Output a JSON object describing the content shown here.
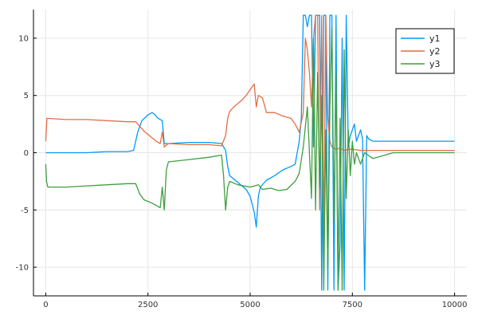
{
  "chart_data": {
    "type": "line",
    "title": "",
    "xlabel": "",
    "ylabel": "",
    "xlim": [
      -300,
      10300
    ],
    "ylim": [
      -12.5,
      12.5
    ],
    "x_ticks": [
      0,
      2500,
      5000,
      7500,
      10000
    ],
    "x_tick_labels": [
      "0",
      "2500",
      "5000",
      "7500",
      "10000"
    ],
    "y_ticks": [
      -10,
      -5,
      0,
      5,
      10
    ],
    "y_tick_labels": [
      "-10",
      "-5",
      "0",
      "5",
      "10"
    ],
    "grid": true,
    "legend_position": "top-right",
    "series": [
      {
        "name": "y1",
        "color": "#009AFA",
        "x": [
          0,
          500,
          1000,
          1500,
          2000,
          2150,
          2250,
          2350,
          2500,
          2600,
          2650,
          2750,
          2850,
          2900,
          3000,
          3500,
          4000,
          4300,
          4400,
          4450,
          4500,
          4700,
          4900,
          5000,
          5100,
          5150,
          5200,
          5250,
          5400,
          5600,
          5800,
          6000,
          6100,
          6200,
          6250,
          6300,
          6350,
          6400,
          6450,
          6500,
          6550,
          6600,
          6650,
          6700,
          6750,
          6800,
          6850,
          6900,
          6950,
          7000,
          7050,
          7100,
          7150,
          7200,
          7250,
          7300,
          7350,
          7400,
          7450,
          7500,
          7550,
          7600,
          7650,
          7700,
          7750,
          7800,
          7850,
          7900,
          8000,
          8500,
          9000,
          9500,
          10000
        ],
        "y": [
          0,
          0,
          0,
          0.1,
          0.1,
          0.2,
          1.8,
          2.8,
          3.3,
          3.5,
          3.4,
          3.0,
          2.8,
          0.8,
          0.8,
          0.9,
          0.9,
          0.8,
          0.2,
          -1.2,
          -2.0,
          -2.6,
          -3.2,
          -3.8,
          -5.2,
          -6.5,
          -3.8,
          -3.0,
          -2.4,
          -2.0,
          -1.5,
          -1.2,
          -1.0,
          1.0,
          3.0,
          12,
          12,
          11,
          12,
          12,
          0.5,
          12,
          12,
          12,
          -12,
          12,
          12,
          -12,
          12,
          12,
          -12,
          12,
          -12,
          -8,
          10,
          -12,
          12,
          0.5,
          1.5,
          2.0,
          2.5,
          1.0,
          1.5,
          2.0,
          1.2,
          -12,
          1.5,
          1.2,
          1.0,
          1.0,
          1.0,
          1.0,
          1.0
        ]
      },
      {
        "name": "y2",
        "color": "#E26F46",
        "x": [
          0,
          30,
          500,
          1000,
          1500,
          2000,
          2200,
          2400,
          2600,
          2700,
          2800,
          2850,
          2900,
          3000,
          3500,
          4000,
          4300,
          4400,
          4450,
          4500,
          4600,
          4800,
          4900,
          5000,
          5100,
          5150,
          5200,
          5300,
          5400,
          5600,
          5800,
          6000,
          6100,
          6200,
          6300,
          6350,
          6400,
          6450,
          6500,
          6550,
          6600,
          6650,
          6700,
          6750,
          6800,
          6850,
          6900,
          6950,
          7000,
          7100,
          7200,
          7300,
          7400,
          7500,
          7700,
          8000,
          8500,
          9000,
          9500,
          10000
        ],
        "y": [
          1.0,
          3.0,
          2.9,
          2.9,
          2.8,
          2.7,
          2.7,
          1.9,
          1.3,
          1.0,
          0.8,
          1.8,
          0.5,
          0.8,
          0.7,
          0.7,
          0.6,
          1.5,
          3.0,
          3.6,
          4.0,
          4.6,
          5.0,
          5.5,
          6.0,
          4.0,
          5.0,
          4.8,
          3.5,
          3.5,
          3.2,
          3.0,
          2.5,
          1.8,
          3.5,
          10,
          9,
          7,
          4,
          10,
          12,
          12,
          -5,
          12,
          -7.8,
          12,
          3,
          1,
          0.5,
          0.3,
          0.4,
          0.2,
          0.3,
          0.3,
          0.2,
          0.2,
          0.2,
          0.2,
          0.2,
          0.2
        ]
      },
      {
        "name": "y3",
        "color": "#3E9F3E",
        "x": [
          0,
          20,
          50,
          500,
          1000,
          1500,
          2000,
          2200,
          2300,
          2400,
          2600,
          2700,
          2800,
          2850,
          2900,
          2950,
          3000,
          3500,
          4000,
          4300,
          4350,
          4400,
          4450,
          4500,
          4700,
          5000,
          5200,
          5300,
          5500,
          5700,
          5900,
          6100,
          6200,
          6300,
          6400,
          6500,
          6550,
          6600,
          6650,
          6700,
          6750,
          6800,
          6850,
          6900,
          6950,
          7000,
          7050,
          7100,
          7150,
          7200,
          7250,
          7300,
          7350,
          7400,
          7450,
          7500,
          7550,
          7600,
          7700,
          7800,
          8000,
          8500,
          9000,
          9500,
          10000
        ],
        "y": [
          -1.0,
          -2.5,
          -3.0,
          -3.0,
          -2.9,
          -2.8,
          -2.7,
          -2.7,
          -3.6,
          -4.1,
          -4.4,
          -4.6,
          -4.8,
          -3.0,
          -5.0,
          -1.5,
          -0.8,
          -0.6,
          -0.4,
          -0.2,
          -2.0,
          -5.0,
          -3.0,
          -2.5,
          -2.8,
          -3.0,
          -2.8,
          -3.2,
          -3.1,
          -3.3,
          -3.2,
          -2.5,
          -1.8,
          0.5,
          4.0,
          -4.0,
          10.0,
          -5.0,
          7.0,
          -3.0,
          5.0,
          -12.0,
          2.0,
          -10.0,
          4.0,
          11.0,
          -6.0,
          7.0,
          -12.0,
          3.0,
          -12.0,
          9.0,
          -4.0,
          2.0,
          -2.0,
          1.0,
          -1.0,
          0.0,
          -1.0,
          0.0,
          -0.5,
          0.0,
          0.0,
          0.0,
          0.0
        ]
      }
    ]
  }
}
